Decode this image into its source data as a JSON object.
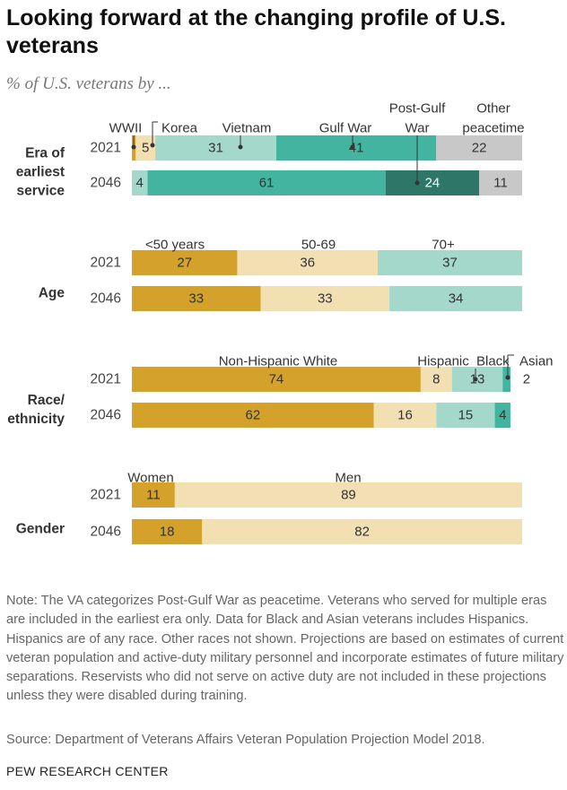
{
  "title": "Looking forward at the changing profile of U.S. veterans",
  "subtitle": "% of U.S. veterans by ...",
  "note": "Note: The VA categorizes Post-Gulf War as peacetime. Veterans who served for multiple eras are included in the earliest era only. Data for Black and Asian veterans includes Hispanics. Hispanics are of any race. Other races not shown. Projections are based on estimates of current veteran population and active-duty military personnel and incorporate estimates of future military separations. Reservists who did not serve on active duty are not included in these projections unless they were disabled during training.",
  "source": "Source: Department of Veterans Affairs Veteran Population Projection Model 2018.",
  "brand": "PEW RESEARCH CENTER",
  "chart_data": {
    "type": "bar",
    "orientation": "horizontal-stacked",
    "xlim": [
      0,
      100
    ],
    "groups": [
      {
        "label": [
          "Era of",
          "earliest",
          "service"
        ],
        "categories": [
          "2021",
          "2046"
        ],
        "series": [
          {
            "name": "WWII",
            "color": "#d4a12a",
            "values": [
              1,
              0
            ],
            "labels": [
              "",
              ""
            ]
          },
          {
            "name": "Korea",
            "color": "#f2e0b3",
            "values": [
              5,
              0
            ],
            "labels": [
              "5",
              ""
            ]
          },
          {
            "name": "Vietnam",
            "color": "#a4d8ca",
            "values": [
              31,
              4
            ],
            "labels": [
              "31",
              "4"
            ]
          },
          {
            "name": "Gulf War",
            "color": "#43b4a0",
            "values": [
              41,
              61
            ],
            "labels": [
              "41",
              "61"
            ]
          },
          {
            "name": "Post-Gulf War",
            "color": "#2e7668",
            "values": [
              0,
              24
            ],
            "labels": [
              "",
              "24"
            ]
          },
          {
            "name": "Other peacetime",
            "color": "#c8c8c8",
            "values": [
              22,
              11
            ],
            "labels": [
              "22",
              "11"
            ]
          }
        ]
      },
      {
        "label": [
          "Age"
        ],
        "categories": [
          "2021",
          "2046"
        ],
        "series": [
          {
            "name": "<50 years",
            "color": "#d4a12a",
            "values": [
              27,
              33
            ],
            "labels": [
              "27",
              "33"
            ]
          },
          {
            "name": "50-69",
            "color": "#f2e0b3",
            "values": [
              36,
              33
            ],
            "labels": [
              "36",
              "33"
            ]
          },
          {
            "name": "70+",
            "color": "#a4d8ca",
            "values": [
              37,
              34
            ],
            "labels": [
              "37",
              "34"
            ]
          }
        ]
      },
      {
        "label": [
          "Race/",
          "ethnicity"
        ],
        "categories": [
          "2021",
          "2046"
        ],
        "series": [
          {
            "name": "Non-Hispanic White",
            "color": "#d4a12a",
            "values": [
              74,
              62
            ],
            "labels": [
              "74",
              "62"
            ]
          },
          {
            "name": "Hispanic",
            "color": "#f2e0b3",
            "values": [
              8,
              16
            ],
            "labels": [
              "8",
              "16"
            ]
          },
          {
            "name": "Black",
            "color": "#a4d8ca",
            "values": [
              13,
              15
            ],
            "labels": [
              "13",
              "15"
            ]
          },
          {
            "name": "Asian",
            "color": "#43b4a0",
            "values": [
              2,
              4
            ],
            "labels": [
              "2",
              "4"
            ]
          }
        ]
      },
      {
        "label": [
          "Gender"
        ],
        "categories": [
          "2021",
          "2046"
        ],
        "series": [
          {
            "name": "Women",
            "color": "#d4a12a",
            "values": [
              11,
              18
            ],
            "labels": [
              "11",
              "18"
            ]
          },
          {
            "name": "Men",
            "color": "#f2e0b3",
            "values": [
              89,
              82
            ],
            "labels": [
              "89",
              "82"
            ]
          }
        ]
      }
    ]
  }
}
